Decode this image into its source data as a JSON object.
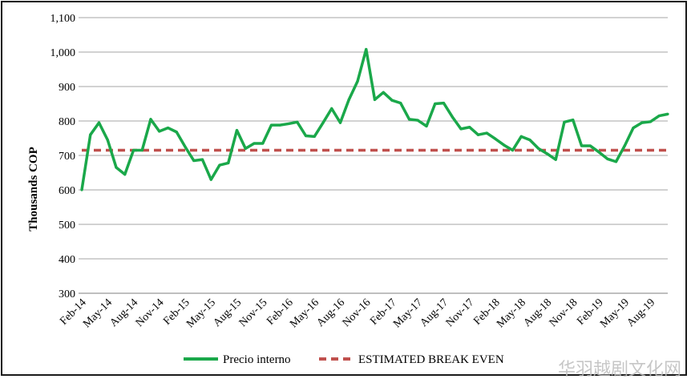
{
  "chart_data": {
    "type": "line",
    "ylabel": "Thousands COP",
    "ylim": [
      300,
      1100
    ],
    "yticks": [
      "300",
      "400",
      "500",
      "600",
      "700",
      "800",
      "900",
      "1,000",
      "1,100"
    ],
    "ytick_values": [
      300,
      400,
      500,
      600,
      700,
      800,
      900,
      1000,
      1100
    ],
    "grid": "horizontal",
    "legend_position": "bottom",
    "x": [
      "Feb-14",
      "Mar-14",
      "Apr-14",
      "May-14",
      "Jun-14",
      "Jul-14",
      "Aug-14",
      "Sep-14",
      "Oct-14",
      "Nov-14",
      "Dec-14",
      "Jan-15",
      "Feb-15",
      "Mar-15",
      "Apr-15",
      "May-15",
      "Jun-15",
      "Jul-15",
      "Aug-15",
      "Sep-15",
      "Oct-15",
      "Nov-15",
      "Dec-15",
      "Jan-16",
      "Feb-16",
      "Mar-16",
      "Apr-16",
      "May-16",
      "Jun-16",
      "Jul-16",
      "Aug-16",
      "Sep-16",
      "Oct-16",
      "Nov-16",
      "Dec-16",
      "Jan-17",
      "Feb-17",
      "Mar-17",
      "Apr-17",
      "May-17",
      "Jun-17",
      "Jul-17",
      "Aug-17",
      "Sep-17",
      "Oct-17",
      "Nov-17",
      "Dec-17",
      "Jan-18",
      "Feb-18",
      "Mar-18",
      "Apr-18",
      "May-18",
      "Jun-18",
      "Jul-18",
      "Aug-18",
      "Sep-18",
      "Oct-18",
      "Nov-18",
      "Dec-18",
      "Jan-19",
      "Feb-19",
      "Mar-19",
      "Apr-19",
      "May-19",
      "Jun-19",
      "Jul-19",
      "Aug-19",
      "Sep-19",
      "Oct-19"
    ],
    "xtick_labels": [
      "Feb-14",
      "May-14",
      "Aug-14",
      "Nov-14",
      "Feb-15",
      "May-15",
      "Aug-15",
      "Nov-15",
      "Feb-16",
      "May-16",
      "Aug-16",
      "Nov-16",
      "Feb-17",
      "May-17",
      "Aug-17",
      "Nov-17",
      "Feb-18",
      "May-18",
      "Aug-18",
      "Nov-18",
      "Feb-19",
      "May-19",
      "Aug-19"
    ],
    "series": [
      {
        "name": "Precio interno",
        "color": "#1aa84a",
        "style": "solid",
        "values": [
          600,
          760,
          795,
          745,
          665,
          645,
          715,
          715,
          805,
          770,
          780,
          768,
          725,
          685,
          688,
          630,
          672,
          678,
          773,
          720,
          735,
          735,
          788,
          788,
          792,
          797,
          757,
          755,
          795,
          836,
          795,
          862,
          915,
          1008,
          862,
          883,
          860,
          852,
          805,
          802,
          785,
          850,
          852,
          812,
          777,
          782,
          760,
          765,
          748,
          730,
          715,
          755,
          745,
          720,
          705,
          688,
          797,
          803,
          728,
          728,
          710,
          690,
          682,
          728,
          780,
          795,
          798,
          815,
          820
        ]
      },
      {
        "name": "ESTIMATED BREAK EVEN",
        "color": "#c0504d",
        "style": "dashed",
        "constant": 715
      }
    ]
  },
  "watermark": "华羽越剧文化网"
}
